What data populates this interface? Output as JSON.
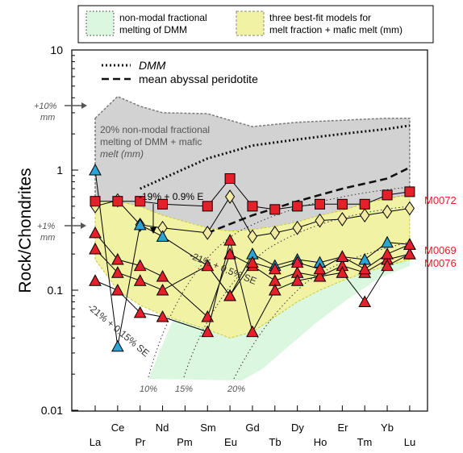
{
  "chart_data": {
    "type": "line",
    "ylabel": "Rock/Chondrites",
    "yscale": "log",
    "ylim": [
      0.01,
      10
    ],
    "y_ticks": [
      "10",
      "1",
      "0.1",
      "0.01"
    ],
    "x_tick_labels_upper": [
      "Ce",
      "Nd",
      "Sm",
      "Gd",
      "Dy",
      "Er",
      "Yb"
    ],
    "x_tick_labels_lower": [
      "La",
      "Pr",
      "Pm",
      "Eu",
      "Tb",
      "Ho",
      "Tm",
      "Lu"
    ],
    "categories": [
      "La",
      "Ce",
      "Pr",
      "Nd",
      "Pm",
      "Sm",
      "Eu",
      "Gd",
      "Tb",
      "Dy",
      "Ho",
      "Er",
      "Tm",
      "Yb",
      "Lu"
    ],
    "legend": {
      "green_label_1": "non-modal fractional",
      "green_label_2": "melting of DMM",
      "yellow_label_1": "three best-fit models for",
      "yellow_label_2": "melt fraction + mafic melt (mm)",
      "dmm_label": "DMM",
      "abyssal_label": "mean abyssal peridotite"
    },
    "annotations": {
      "plus10": "+10%",
      "plus1": "+1%",
      "mm": "mm",
      "gray_1": "20% non-modal fractional",
      "gray_2": "melting of DMM + mafic",
      "gray_3": "melt (mm)",
      "model_1": "-19% + 0.9% E",
      "model_2": "-21% + 0.5% SE",
      "model_3": "-21% + 0.15% SE",
      "pct10": "10%",
      "pct15": "15%",
      "pct20": "20%"
    },
    "reference_lines": {
      "DMM": [
        null,
        null,
        0.7,
        null,
        null,
        1.25,
        null,
        1.6,
        null,
        1.8,
        null,
        2.0,
        null,
        2.2,
        2.35
      ],
      "mean_abyssal_peridotite": [
        null,
        null,
        null,
        null,
        null,
        0.3,
        null,
        0.42,
        null,
        0.55,
        null,
        0.7,
        null,
        0.85,
        1.05
      ]
    },
    "series": [
      {
        "name": "M0072",
        "color": "#e5202a",
        "marker": "square",
        "values": [
          0.55,
          0.55,
          0.55,
          0.52,
          null,
          0.5,
          0.85,
          0.5,
          0.47,
          0.5,
          0.52,
          0.52,
          0.52,
          0.62,
          0.66
        ]
      },
      {
        "name": "M0069",
        "color": "#e5202a",
        "marker": "triangle",
        "values": [
          0.22,
          0.14,
          0.12,
          0.1,
          null,
          0.16,
          0.09,
          0.17,
          0.15,
          0.17,
          0.15,
          0.19,
          0.15,
          0.2,
          0.24
        ]
      },
      {
        "name": "M0076",
        "color": "#e5202a",
        "marker": "triangle",
        "values": [
          0.12,
          0.1,
          0.065,
          0.06,
          null,
          0.045,
          0.26,
          0.045,
          0.1,
          0.12,
          0.13,
          0.14,
          0.08,
          0.16,
          0.2
        ]
      },
      {
        "color": "#2aa3d6",
        "marker": "triangle",
        "values": [
          1.0,
          0.034,
          0.35,
          0.28,
          null,
          0.16,
          0.09,
          0.2,
          0.16,
          0.18,
          0.17,
          0.19,
          0.18,
          0.25,
          0.24
        ]
      },
      {
        "color": "#e5202a",
        "marker": "triangle",
        "values": [
          0.3,
          0.18,
          0.16,
          0.13,
          null,
          0.06,
          0.2,
          0.16,
          0.12,
          0.14,
          0.13,
          0.16,
          0.14,
          0.18,
          0.2
        ]
      },
      {
        "color": "#f3eaa2",
        "marker": "diamond",
        "values": [
          0.5,
          0.56,
          0.35,
          0.33,
          null,
          0.3,
          0.6,
          0.28,
          0.3,
          0.33,
          0.38,
          0.39,
          0.42,
          0.45,
          0.48
        ]
      }
    ],
    "bands": {
      "gray_upper": [
        2.7,
        4.1,
        3.4,
        3.0,
        null,
        2.95,
        2.6,
        2.3,
        2.4,
        2.5,
        2.55,
        2.6,
        2.65,
        2.7,
        2.7
      ],
      "gray_lower": [
        0.5,
        0.5,
        0.45,
        0.38,
        null,
        0.31,
        0.29,
        0.3,
        0.32,
        0.35,
        0.4,
        0.45,
        0.52,
        0.58,
        0.62
      ],
      "yellow_upper": [
        0.55,
        0.55,
        0.5,
        0.42,
        null,
        0.33,
        0.31,
        0.32,
        0.34,
        0.37,
        0.42,
        0.46,
        0.53,
        0.58,
        0.62
      ],
      "yellow_lower": [
        0.18,
        0.1,
        0.075,
        0.062,
        null,
        0.047,
        0.04,
        0.045,
        0.06,
        0.08,
        0.1,
        0.12,
        0.14,
        0.16,
        0.18
      ]
    }
  },
  "colors": {
    "gray_band": "#d2d2d2",
    "gray_edge": "#7a7a7a",
    "yellow_band": "#f2f2a4",
    "yellow_edge": "#c9c932",
    "green_band": "#dcf7df",
    "red_marker": "#e5202a",
    "blue_marker": "#2aa3d6",
    "diamond_fill": "#f3eaa2"
  }
}
